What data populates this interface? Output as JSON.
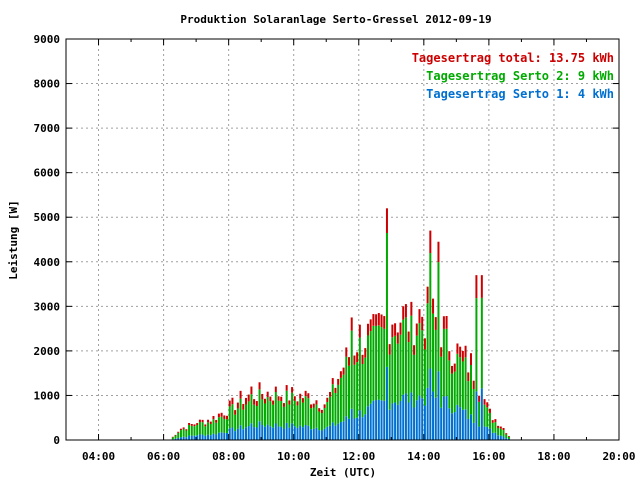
{
  "chart_data": {
    "type": "bar",
    "title": "Produktion Solaranlage Serto-Gressel 2012-09-19",
    "xlabel": "Zeit (UTC)",
    "ylabel": "Leistung [W]",
    "xlim": [
      3,
      20
    ],
    "ylim": [
      0,
      9000
    ],
    "x_ticks": [
      4,
      6,
      8,
      10,
      12,
      14,
      16,
      18,
      20
    ],
    "x_tick_labels": [
      "04:00",
      "06:00",
      "08:00",
      "10:00",
      "12:00",
      "14:00",
      "16:00",
      "18:00",
      "20:00"
    ],
    "y_ticks": [
      0,
      1000,
      2000,
      3000,
      4000,
      5000,
      6000,
      7000,
      8000,
      9000
    ],
    "y_tick_labels": [
      "0",
      "1000",
      "2000",
      "3000",
      "4000",
      "5000",
      "6000",
      "7000",
      "8000",
      "9000"
    ],
    "grid": true,
    "stacked": true,
    "legend_position": "top-right",
    "legend": [
      {
        "text": "Tagesertrag total: 13.75 kWh",
        "color": "#cc0000"
      },
      {
        "text": "Tagesertrag Serto 2: 9 kWh",
        "color": "#00aa00"
      },
      {
        "text": "Tagesertrag Serto 1: 4 kWh",
        "color": "#0070d0"
      }
    ],
    "series": [
      {
        "color": "#0070d0",
        "anchors": [
          [
            6.2,
            0
          ],
          [
            6.5,
            60
          ],
          [
            7,
            100
          ],
          [
            7.5,
            120
          ],
          [
            8,
            200
          ],
          [
            8.5,
            280
          ],
          [
            9,
            330
          ],
          [
            9.5,
            310
          ],
          [
            10,
            300
          ],
          [
            10.5,
            280
          ],
          [
            11,
            250
          ],
          [
            11.5,
            400
          ],
          [
            12,
            560
          ],
          [
            12.5,
            700
          ],
          [
            13,
            850
          ],
          [
            13.5,
            900
          ],
          [
            14,
            920
          ],
          [
            14.5,
            850
          ],
          [
            15,
            700
          ],
          [
            15.5,
            450
          ],
          [
            16,
            220
          ],
          [
            16.5,
            60
          ],
          [
            16.7,
            0
          ]
        ]
      },
      {
        "color": "#00aa00",
        "anchors": [
          [
            6.2,
            0
          ],
          [
            6.5,
            150
          ],
          [
            7,
            220
          ],
          [
            7.5,
            280
          ],
          [
            8,
            380
          ],
          [
            8.5,
            500
          ],
          [
            9,
            560
          ],
          [
            9.5,
            600
          ],
          [
            10,
            550
          ],
          [
            10.5,
            550
          ],
          [
            11,
            450
          ],
          [
            11.5,
            1000
          ],
          [
            12,
            1400
          ],
          [
            12.5,
            1300
          ],
          [
            13,
            1550
          ],
          [
            13.5,
            1450
          ],
          [
            14,
            1500
          ],
          [
            14.5,
            1350
          ],
          [
            15,
            1000
          ],
          [
            15.5,
            900
          ],
          [
            16,
            300
          ],
          [
            16.5,
            120
          ],
          [
            16.7,
            0
          ]
        ]
      },
      {
        "color": "#cc0000",
        "anchors": [
          [
            6.2,
            0
          ],
          [
            6.5,
            30
          ],
          [
            7,
            40
          ],
          [
            7.5,
            60
          ],
          [
            8,
            100
          ],
          [
            8.5,
            150
          ],
          [
            9,
            120
          ],
          [
            9.5,
            100
          ],
          [
            10,
            100
          ],
          [
            10.5,
            100
          ],
          [
            11,
            80
          ],
          [
            11.5,
            150
          ],
          [
            12,
            250
          ],
          [
            12.5,
            200
          ],
          [
            13,
            300
          ],
          [
            13.5,
            250
          ],
          [
            14,
            300
          ],
          [
            14.5,
            250
          ],
          [
            15,
            200
          ],
          [
            15.5,
            220
          ],
          [
            16,
            80
          ],
          [
            16.5,
            40
          ],
          [
            16.7,
            0
          ]
        ]
      }
    ],
    "peaks": [
      [
        7.0,
        380
      ],
      [
        8.7,
        1200
      ],
      [
        11.8,
        2750
      ],
      [
        12.85,
        5200
      ],
      [
        13.6,
        3100
      ],
      [
        14.2,
        4700
      ],
      [
        14.45,
        4450
      ],
      [
        15.6,
        3700
      ],
      [
        15.75,
        3700
      ]
    ]
  }
}
